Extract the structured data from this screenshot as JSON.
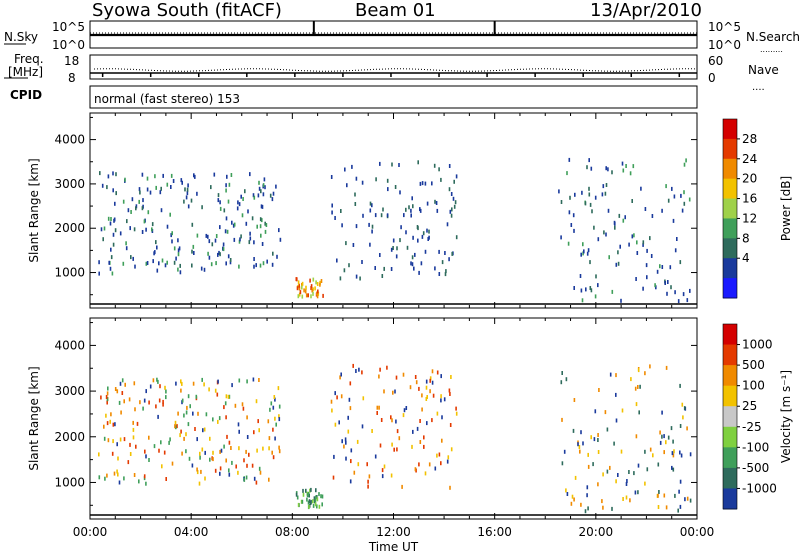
{
  "header": {
    "station": "Syowa South (fitACF)",
    "beam": "Beam 01",
    "date": "13/Apr/2010"
  },
  "status_panels": {
    "nsky_label": "N.Sky",
    "nsky_ticks": [
      "10^5",
      "10^0"
    ],
    "nsearch_label": "N.Search",
    "nsearch_ticks": [
      "10^5",
      "10^0"
    ],
    "freq_label": "Freq.",
    "freq_unit": "[MHz]",
    "freq_ticks": [
      "18",
      "8"
    ],
    "nave_label": "Nave",
    "nave_ticks": [
      "60",
      "0"
    ],
    "cpid_label": "CPID",
    "cpid_text": "normal (fast stereo) 153"
  },
  "chart_data": [
    {
      "type": "heatmap",
      "name": "power",
      "ylabel": "Slant Range [km]",
      "yticks": [
        "4000",
        "3000",
        "2000",
        "1000"
      ],
      "ylim": [
        200,
        4600
      ],
      "xlim": [
        0,
        24
      ],
      "colorbar_label": "Power [dB]",
      "colorbar_ticks": [
        "28",
        "24",
        "20",
        "16",
        "12",
        "8",
        "4"
      ],
      "colorbar_colors": [
        "#1a1aff",
        "#1a3a9c",
        "#2e6b5c",
        "#3f9f5a",
        "#9fd14a",
        "#f2c200",
        "#f08a00",
        "#e43a00",
        "#d40000"
      ],
      "scatter_clusters": [
        {
          "x0": 0.3,
          "x1": 7.5,
          "y0": 1000,
          "y1": 3300,
          "n": 220,
          "colors": [
            "#1a3a9c",
            "#1a3a9c",
            "#2e6b5c",
            "#3f9f5a"
          ]
        },
        {
          "x0": 9.5,
          "x1": 14.5,
          "y0": 900,
          "y1": 3600,
          "n": 120,
          "colors": [
            "#1a3a9c",
            "#1a3a9c",
            "#2e6b5c"
          ]
        },
        {
          "x0": 18.5,
          "x1": 23.8,
          "y0": 400,
          "y1": 3600,
          "n": 120,
          "colors": [
            "#1a3a9c",
            "#1a3a9c",
            "#2e6b5c",
            "#3f9f5a"
          ]
        },
        {
          "x0": 8.1,
          "x1": 9.2,
          "y0": 500,
          "y1": 900,
          "n": 40,
          "colors": [
            "#f08a00",
            "#f2c200",
            "#e43a00",
            "#9fd14a"
          ]
        }
      ]
    },
    {
      "type": "heatmap",
      "name": "velocity",
      "ylabel": "Slant Range [km]",
      "yticks": [
        "4000",
        "3000",
        "2000",
        "1000"
      ],
      "ylim": [
        200,
        4600
      ],
      "xlim": [
        0,
        24
      ],
      "colorbar_label": "Velocity [m s⁻¹]",
      "colorbar_ticks": [
        "1000",
        "500",
        "100",
        "25",
        "-25",
        "-100",
        "-500",
        "-1000"
      ],
      "colorbar_colors": [
        "#1a3a9c",
        "#2e6b5c",
        "#3f9f5a",
        "#7fd040",
        "#c8c8c8",
        "#f2c200",
        "#f08a00",
        "#e43a00",
        "#d40000"
      ],
      "scatter_clusters": [
        {
          "x0": 0.3,
          "x1": 7.5,
          "y0": 1000,
          "y1": 3300,
          "n": 220,
          "colors": [
            "#f2c200",
            "#f08a00",
            "#e43a00",
            "#1a3a9c",
            "#3f9f5a"
          ]
        },
        {
          "x0": 9.5,
          "x1": 14.5,
          "y0": 900,
          "y1": 3600,
          "n": 120,
          "colors": [
            "#f2c200",
            "#f08a00",
            "#e43a00",
            "#1a3a9c"
          ]
        },
        {
          "x0": 18.5,
          "x1": 23.8,
          "y0": 400,
          "y1": 3600,
          "n": 120,
          "colors": [
            "#f2c200",
            "#f08a00",
            "#1a3a9c",
            "#2e6b5c"
          ]
        },
        {
          "x0": 8.1,
          "x1": 9.2,
          "y0": 500,
          "y1": 900,
          "n": 40,
          "colors": [
            "#3f9f5a",
            "#7fd040",
            "#2e6b5c"
          ]
        }
      ]
    }
  ],
  "xaxis": {
    "ticks": [
      "00:00",
      "04:00",
      "08:00",
      "12:00",
      "16:00",
      "20:00",
      "00:00"
    ],
    "label": "Time UT"
  }
}
